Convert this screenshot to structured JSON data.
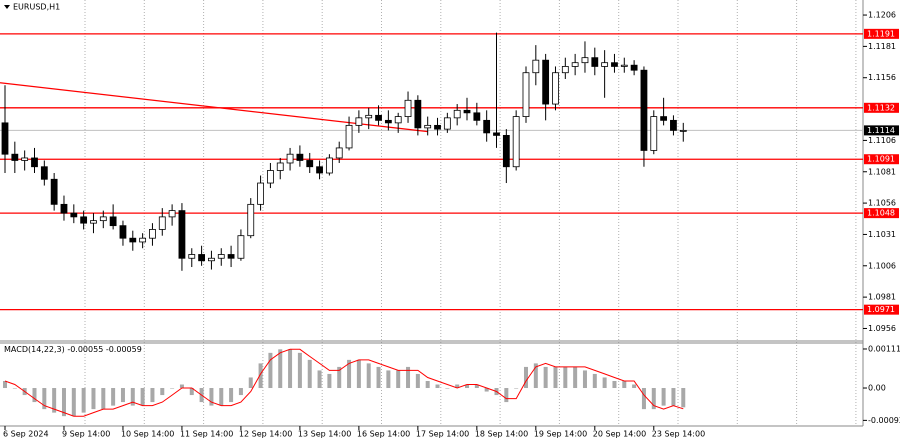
{
  "chart_data": [
    {
      "type": "candlestick",
      "title": "EURUSD,H1",
      "categories": [
        "6 Sep 2024",
        null,
        null,
        null,
        null,
        null,
        "9 Sep 14:00",
        null,
        null,
        null,
        null,
        null,
        "10 Sep 14:00",
        null,
        null,
        null,
        null,
        null,
        "11 Sep 14:00",
        null,
        null,
        null,
        null,
        null,
        "12 Sep 14:00",
        null,
        null,
        null,
        null,
        null,
        "13 Sep 14:00",
        null,
        null,
        null,
        null,
        null,
        "16 Sep 14:00",
        null,
        null,
        null,
        null,
        null,
        "17 Sep 14:00",
        null,
        null,
        null,
        null,
        null,
        "18 Sep 14:00",
        null,
        null,
        null,
        null,
        null,
        "19 Sep 14:00",
        null,
        null,
        null,
        null,
        null,
        "20 Sep 14:00",
        null,
        null,
        null,
        null,
        null,
        "23 Sep 14:00",
        null,
        null,
        null
      ],
      "open": [
        1.112,
        1.1095,
        1.109,
        1.1092,
        1.1085,
        1.1075,
        1.1055,
        1.1048,
        1.1045,
        1.104,
        1.1042,
        1.1045,
        1.1038,
        1.1028,
        1.1025,
        1.1028,
        1.1035,
        1.1045,
        1.105,
        1.1012,
        1.1015,
        1.101,
        1.1012,
        1.1015,
        1.1012,
        1.103,
        1.1055,
        1.1072,
        1.1082,
        1.1088,
        1.1095,
        1.109,
        1.1085,
        1.108,
        1.1092,
        1.11,
        1.1118,
        1.1124,
        1.1126,
        1.1122,
        1.112,
        1.1125,
        1.1138,
        1.1116,
        1.1118,
        1.1115,
        1.1124,
        1.113,
        1.1128,
        1.1122,
        1.1112,
        1.111,
        1.1085,
        1.1125,
        1.116,
        1.117,
        1.1135,
        1.116,
        1.1165,
        1.1168,
        1.1172,
        1.1165,
        1.1168,
        1.1165,
        1.1166,
        1.1162,
        1.1098,
        1.1125,
        1.1122,
        1.1114
      ],
      "high": [
        1.115,
        1.1105,
        1.1098,
        1.11,
        1.109,
        1.108,
        1.1062,
        1.1055,
        1.105,
        1.1048,
        1.105,
        1.1055,
        1.1042,
        1.1034,
        1.1032,
        1.104,
        1.1052,
        1.1055,
        1.1056,
        1.102,
        1.1022,
        1.1018,
        1.102,
        1.1022,
        1.1035,
        1.106,
        1.1078,
        1.1088,
        1.1092,
        1.11,
        1.1102,
        1.1096,
        1.109,
        1.1095,
        1.1105,
        1.1125,
        1.113,
        1.1132,
        1.1134,
        1.113,
        1.1128,
        1.1145,
        1.1142,
        1.1125,
        1.1124,
        1.1128,
        1.1135,
        1.114,
        1.1136,
        1.113,
        1.1192,
        1.1115,
        1.113,
        1.1165,
        1.1182,
        1.1175,
        1.1165,
        1.1172,
        1.1175,
        1.1185,
        1.118,
        1.1178,
        1.1175,
        1.1172,
        1.117,
        1.1165,
        1.113,
        1.114,
        1.1126,
        1.112
      ],
      "low": [
        1.108,
        1.108,
        1.1082,
        1.108,
        1.107,
        1.105,
        1.1042,
        1.104,
        1.1035,
        1.1032,
        1.1036,
        1.1035,
        1.1022,
        1.1018,
        1.102,
        1.1022,
        1.103,
        1.1038,
        1.1002,
        1.1005,
        1.1006,
        1.1003,
        1.1006,
        1.1005,
        1.101,
        1.1028,
        1.105,
        1.1068,
        1.1075,
        1.1082,
        1.1085,
        1.108,
        1.1075,
        1.1078,
        1.1088,
        1.1098,
        1.1112,
        1.1115,
        1.1118,
        1.1114,
        1.1112,
        1.112,
        1.111,
        1.111,
        1.111,
        1.1112,
        1.1118,
        1.1122,
        1.1118,
        1.1105,
        1.11,
        1.1072,
        1.1082,
        1.112,
        1.115,
        1.1122,
        1.113,
        1.1155,
        1.1158,
        1.116,
        1.1158,
        1.114,
        1.116,
        1.116,
        1.1158,
        1.1085,
        1.1095,
        1.1118,
        1.111,
        1.1105
      ],
      "close": [
        1.1095,
        1.109,
        1.1092,
        1.1085,
        1.1075,
        1.1055,
        1.1048,
        1.1045,
        1.104,
        1.1042,
        1.1045,
        1.1038,
        1.1028,
        1.1025,
        1.1028,
        1.1035,
        1.1045,
        1.105,
        1.1012,
        1.1015,
        1.101,
        1.1012,
        1.1015,
        1.1012,
        1.103,
        1.1055,
        1.1072,
        1.1082,
        1.1088,
        1.1095,
        1.109,
        1.1085,
        1.108,
        1.1092,
        1.11,
        1.1118,
        1.1124,
        1.1126,
        1.1122,
        1.112,
        1.1125,
        1.1138,
        1.1116,
        1.1118,
        1.1115,
        1.1124,
        1.113,
        1.1128,
        1.1122,
        1.1112,
        1.111,
        1.1085,
        1.1125,
        1.116,
        1.117,
        1.1135,
        1.116,
        1.1165,
        1.1168,
        1.1172,
        1.1165,
        1.1168,
        1.1165,
        1.1166,
        1.1162,
        1.1098,
        1.1125,
        1.1122,
        1.1114,
        1.1114
      ],
      "ylim": [
        1.0946,
        1.1218
      ],
      "yticks": [
        1.1206,
        1.1181,
        1.1156,
        1.1106,
        1.1081,
        1.1056,
        1.1031,
        1.1006,
        1.0981,
        1.0956
      ],
      "levels": [
        1.1191,
        1.1132,
        1.1091,
        1.1048,
        1.0971
      ],
      "level_color": "#ff0000",
      "current_price": 1.1114,
      "trendline": [
        1.1152,
        1.1113
      ]
    },
    {
      "type": "macd",
      "title": "MACD(14,22,3)",
      "histogram": [
        0.0002,
        0.0,
        -0.0002,
        -0.0004,
        -0.0006,
        -0.0007,
        -0.0008,
        -0.0008,
        -0.0007,
        -0.0006,
        -0.0006,
        -0.0005,
        -0.0004,
        -0.0005,
        -0.0005,
        -0.0004,
        -0.0002,
        0.0,
        0.0001,
        -0.0002,
        -0.0004,
        -0.0005,
        -0.0005,
        -0.0004,
        -0.0002,
        0.0003,
        0.0007,
        0.001,
        0.0011,
        0.0011,
        0.001,
        0.0008,
        0.0005,
        0.0004,
        0.0006,
        0.0008,
        0.0008,
        0.0007,
        0.0006,
        0.0005,
        0.0005,
        0.0006,
        0.0004,
        0.0002,
        0.0001,
        0.0,
        0.0001,
        0.0001,
        0.0001,
        -0.0001,
        -0.0002,
        -0.0004,
        0.0,
        0.0006,
        0.0007,
        0.0006,
        0.0006,
        0.0006,
        0.0006,
        0.0005,
        0.0004,
        0.0003,
        0.0002,
        0.0002,
        0.0001,
        -0.0006,
        -0.0006,
        -0.0005,
        -0.0005,
        -0.00055
      ],
      "signal": [
        0.0002,
        0.0001,
        -0.0001,
        -0.0003,
        -0.0005,
        -0.0006,
        -0.0007,
        -0.0008,
        -0.0008,
        -0.0007,
        -0.0006,
        -0.0006,
        -0.0005,
        -0.0004,
        -0.0005,
        -0.0005,
        -0.0004,
        -0.0002,
        0.0,
        0.0,
        -0.0002,
        -0.0004,
        -0.0005,
        -0.0005,
        -0.0004,
        -0.0001,
        0.0004,
        0.0008,
        0.001,
        0.0011,
        0.0011,
        0.0009,
        0.0007,
        0.0005,
        0.0005,
        0.0007,
        0.0008,
        0.0008,
        0.0007,
        0.0006,
        0.0005,
        0.0005,
        0.0005,
        0.0003,
        0.0002,
        0.0001,
        0.0,
        0.0001,
        0.0001,
        0.0,
        -0.0001,
        -0.0003,
        -0.0003,
        0.0002,
        0.0006,
        0.0007,
        0.0006,
        0.0006,
        0.0006,
        0.0006,
        0.0005,
        0.0004,
        0.0003,
        0.0002,
        0.0002,
        -0.0002,
        -0.0005,
        -0.0006,
        -0.0005,
        -0.00059
      ],
      "hist_color": "#a8a8a8",
      "signal_color": "#ff0000",
      "ylim": [
        -0.00108,
        0.00128
      ],
      "yticks": [
        0.00111,
        {
          "value": 0,
          "label": "0.00"
        },
        -0.00092
      ]
    }
  ]
}
